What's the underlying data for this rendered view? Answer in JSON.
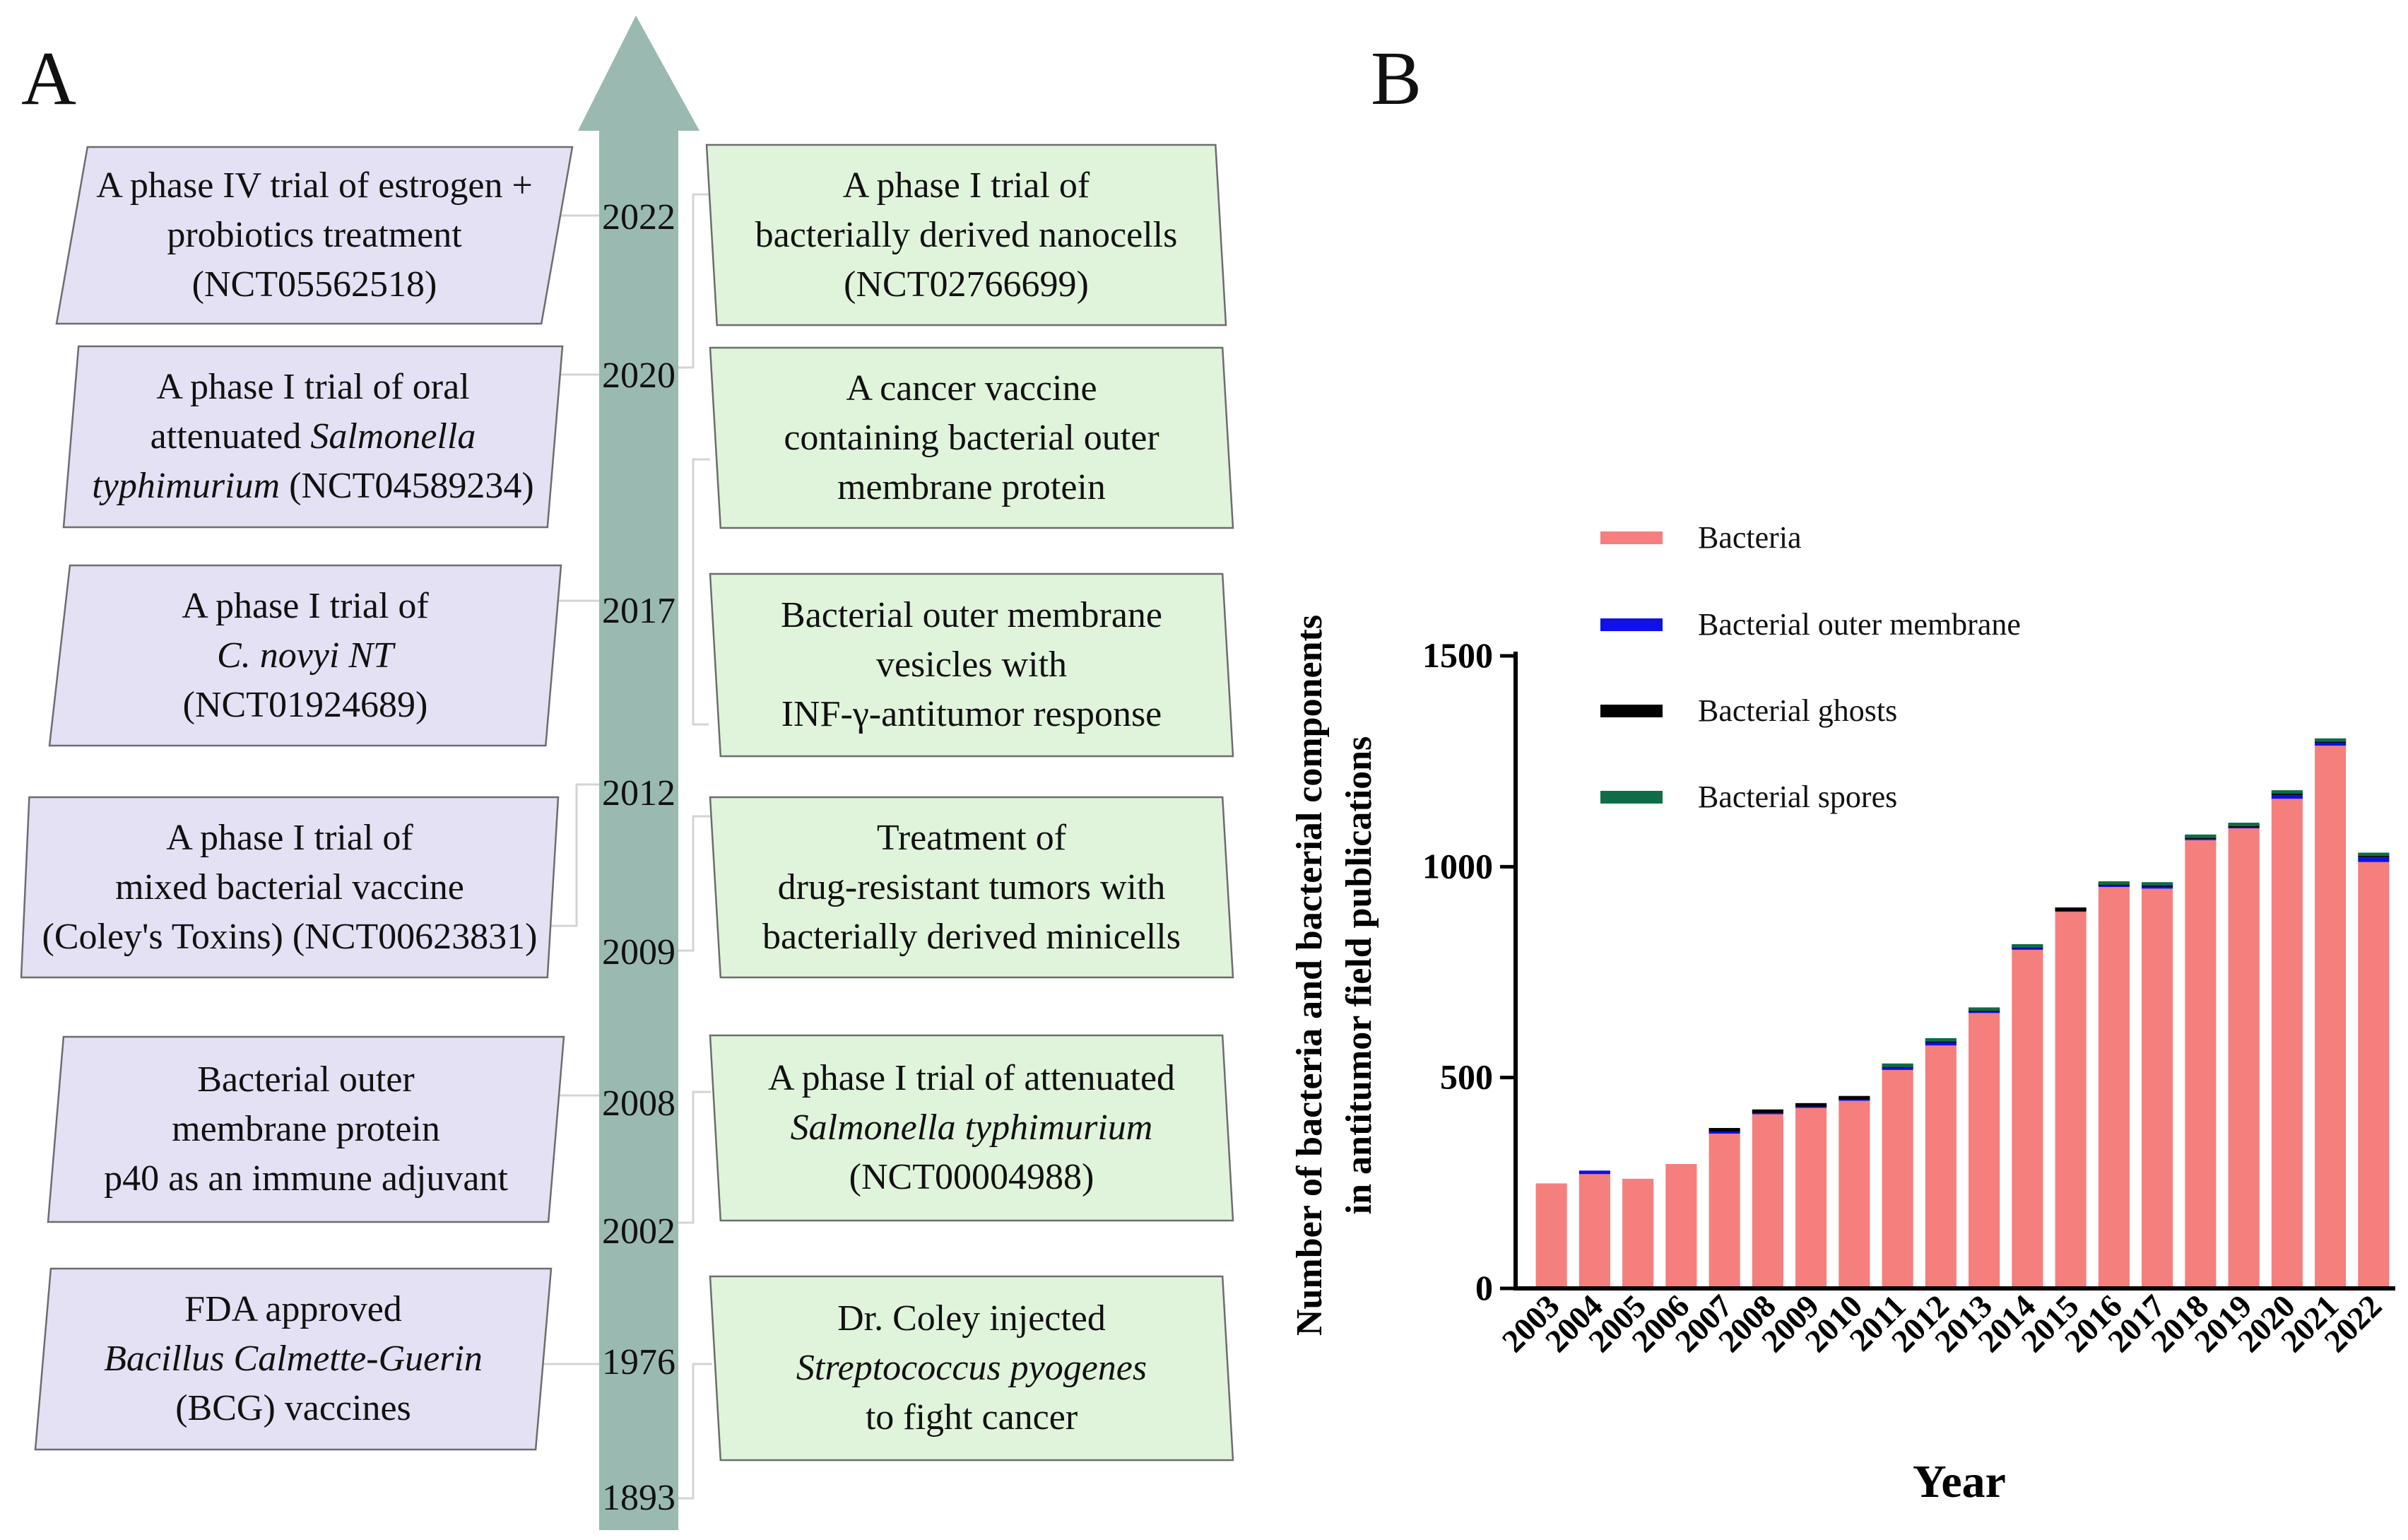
{
  "panel_a": {
    "label": "A",
    "left_events": [
      {
        "year": "2022",
        "parts": [
          {
            "t": "A phase IV trial of estrogen +\nprobiotics treatment\n(NCT05562518)"
          }
        ]
      },
      {
        "year": "2020",
        "parts": [
          {
            "t": "A phase I trial of oral\nattenuated "
          },
          {
            "t": "Salmonella\ntyphimurium",
            "i": true
          },
          {
            "t": " (NCT04589234)"
          }
        ]
      },
      {
        "year": "2017",
        "parts": [
          {
            "t": "A phase I trial of\n"
          },
          {
            "t": "C. novyi NT",
            "i": true
          },
          {
            "t": "\n(NCT01924689)"
          }
        ]
      },
      {
        "year": "2012",
        "parts": [
          {
            "t": "A phase I trial of\nmixed bacterial vaccine\n(Coley's Toxins) (NCT00623831)"
          }
        ]
      },
      {
        "year": "2008",
        "parts": [
          {
            "t": "Bacterial outer\nmembrane protein\np40 as an immune adjuvant"
          }
        ]
      },
      {
        "year": "1976",
        "parts": [
          {
            "t": "FDA approved\n"
          },
          {
            "t": "Bacillus Calmette-Guerin",
            "i": true
          },
          {
            "t": "\n(BCG) vaccines"
          }
        ]
      }
    ],
    "right_events": [
      {
        "year": "2022",
        "parts": [
          {
            "t": "A phase I trial of\nbacterially derived nanocells\n(NCT02766699)"
          }
        ]
      },
      {
        "year": "2017",
        "parts": [
          {
            "t": "A cancer vaccine\ncontaining bacterial outer\nmembrane protein"
          }
        ]
      },
      {
        "year": "2017",
        "parts": [
          {
            "t": "Bacterial outer membrane\nvesicles with\nINF-γ-antitumor response"
          }
        ]
      },
      {
        "year": "2009",
        "parts": [
          {
            "t": "Treatment of\ndrug-resistant tumors with\nbacterially derived minicells"
          }
        ]
      },
      {
        "year": "2002",
        "parts": [
          {
            "t": "A phase I trial of attenuated\n"
          },
          {
            "t": "Salmonella typhimurium",
            "i": true
          },
          {
            "t": "\n(NCT00004988)"
          }
        ]
      },
      {
        "year": "1893",
        "parts": [
          {
            "t": "Dr. Coley injected\n"
          },
          {
            "t": "Streptococcus pyogenes",
            "i": true
          },
          {
            "t": "\nto fight cancer"
          }
        ]
      }
    ],
    "years": [
      "2022",
      "2020",
      "2017",
      "2012",
      "2009",
      "2008",
      "2002",
      "1976",
      "1893"
    ],
    "colors": {
      "arrow": "#9ab9b1",
      "left_fill": "#e3e1f3",
      "right_fill": "#e0f4dc",
      "border": "#6d6d6d"
    }
  },
  "panel_b": {
    "label": "B",
    "chart_data": {
      "type": "bar",
      "stacked": true,
      "title": "",
      "xlabel": "Year",
      "ylabel": "Number of bacteria and bacterial components in antitumor field publications",
      "ylabel_lines": [
        "Number of bacteria and bacterial components",
        "in antitumor field publications"
      ],
      "ylim": [
        0,
        1500
      ],
      "yticks": [
        0,
        500,
        1000,
        1500
      ],
      "legend_position": "top",
      "categories": [
        "2003",
        "2004",
        "2005",
        "2006",
        "2007",
        "2008",
        "2009",
        "2010",
        "2011",
        "2012",
        "2013",
        "2014",
        "2015",
        "2016",
        "2017",
        "2018",
        "2019",
        "2020",
        "2021",
        "2022"
      ],
      "series": [
        {
          "name": "Bacteria",
          "color": "#f47f7c",
          "values": [
            249,
            271,
            260,
            295,
            367,
            413,
            428,
            445,
            518,
            576,
            653,
            803,
            893,
            952,
            948,
            1063,
            1091,
            1161,
            1287,
            1011
          ]
        },
        {
          "name": "Bacterial outer membrane",
          "color": "#1010e8",
          "values": [
            0,
            1,
            0,
            0,
            5,
            3,
            3,
            3,
            6,
            7,
            3,
            4,
            2,
            3,
            5,
            3,
            3,
            9,
            7,
            11
          ]
        },
        {
          "name": "Bacterial ghosts",
          "color": "#000000",
          "values": [
            0,
            0,
            0,
            0,
            1,
            1,
            1,
            1,
            1,
            2,
            2,
            1,
            1,
            2,
            2,
            2,
            2,
            3,
            2,
            3
          ]
        },
        {
          "name": "Bacterial spores",
          "color": "#0e6d47",
          "values": [
            0,
            0,
            0,
            0,
            0,
            0,
            0,
            0,
            1,
            2,
            3,
            2,
            0,
            1,
            6,
            6,
            1,
            3,
            1,
            2
          ]
        }
      ]
    }
  }
}
